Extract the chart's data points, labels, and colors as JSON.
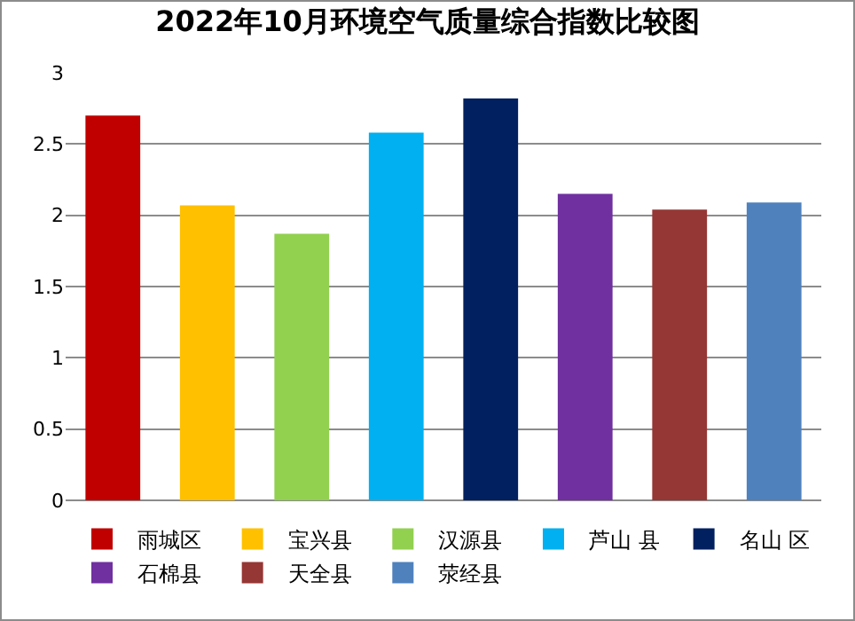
{
  "chart_data": {
    "type": "bar",
    "title": "2022年10月环境空气质量综合指数比较图",
    "categories": [
      null,
      null,
      null,
      null,
      null,
      null,
      null,
      null
    ],
    "series": [
      {
        "name": "雨城区",
        "color": "#c00000",
        "values": [
          2.7,
          null,
          null,
          null,
          null,
          null,
          null,
          null
        ]
      },
      {
        "name": "宝兴县",
        "color": "#ffc000",
        "values": [
          null,
          2.07,
          null,
          null,
          null,
          null,
          null,
          null
        ]
      },
      {
        "name": "汉源县",
        "color": "#92d050",
        "values": [
          null,
          null,
          1.87,
          null,
          null,
          null,
          null,
          null
        ]
      },
      {
        "name": "芦山 县",
        "color": "#00b0f0",
        "values": [
          null,
          null,
          null,
          2.58,
          null,
          null,
          null,
          null
        ]
      },
      {
        "name": "名山 区",
        "color": "#002060",
        "values": [
          null,
          null,
          null,
          null,
          2.82,
          null,
          null,
          null
        ]
      },
      {
        "name": "石棉县",
        "color": "#7030a0",
        "values": [
          null,
          null,
          null,
          null,
          null,
          2.15,
          null,
          null
        ]
      },
      {
        "name": "天全县",
        "color": "#953735",
        "values": [
          null,
          null,
          null,
          null,
          null,
          null,
          2.04,
          null
        ]
      },
      {
        "name": "荥经县",
        "color": "#4f81bd",
        "values": [
          null,
          null,
          null,
          null,
          null,
          null,
          null,
          2.09
        ]
      }
    ],
    "ylim": [
      0,
      3
    ],
    "yticks": [
      0,
      0.5,
      1,
      1.5,
      2,
      2.5,
      3
    ],
    "grid": "y",
    "legend": "bottom",
    "tick_labels": "y"
  }
}
